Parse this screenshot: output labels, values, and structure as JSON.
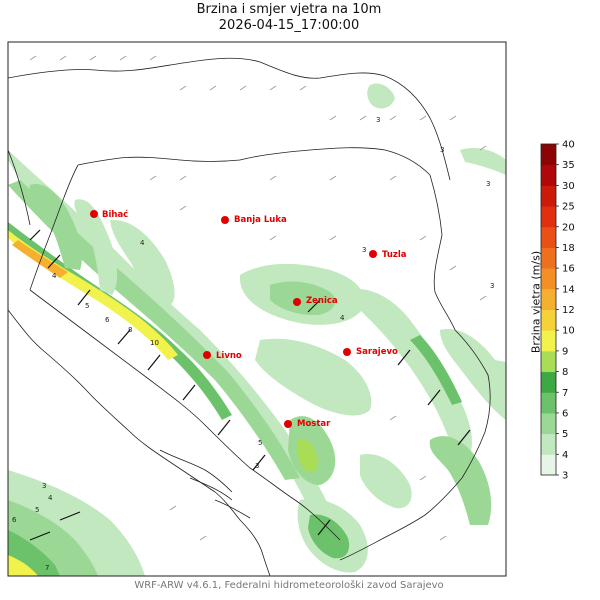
{
  "title": {
    "line1": "Brzina i smjer vjetra na 10m",
    "line2": "2026-04-15_17:00:00"
  },
  "footer": "WRF-ARW v4.6.1, Federalni hidrometeorološki zavod Sarajevo",
  "colorbar": {
    "label": "Brzina vjetra (m/s)",
    "ticks": [
      "3",
      "4",
      "5",
      "6",
      "7",
      "8",
      "9",
      "10",
      "12",
      "14",
      "16",
      "18",
      "20",
      "25",
      "30",
      "35",
      "40"
    ],
    "colors": [
      "#e6f5e6",
      "#c2e8bf",
      "#9bd895",
      "#6cc26a",
      "#3ea845",
      "#a8dd55",
      "#f2f24c",
      "#f5d23a",
      "#f5b030",
      "#f39025",
      "#ee6f1e",
      "#e85016",
      "#e0300e",
      "#cc1a0a",
      "#b00808",
      "#8c0404"
    ]
  },
  "cities": [
    {
      "name": "Bihać"
    },
    {
      "name": "Banja Luka"
    },
    {
      "name": "Tuzla"
    },
    {
      "name": "Zenica"
    },
    {
      "name": "Livno"
    },
    {
      "name": "Sarajevo"
    },
    {
      "name": "Mostar"
    }
  ],
  "contour_labels": [
    "3",
    "3",
    "3",
    "3",
    "3",
    "4",
    "4",
    "5",
    "6",
    "8",
    "10",
    "3",
    "4",
    "5",
    "6",
    "7",
    "3",
    "5",
    "4"
  ],
  "colors": {
    "city_marker": "#e00000",
    "border": "#222222"
  }
}
